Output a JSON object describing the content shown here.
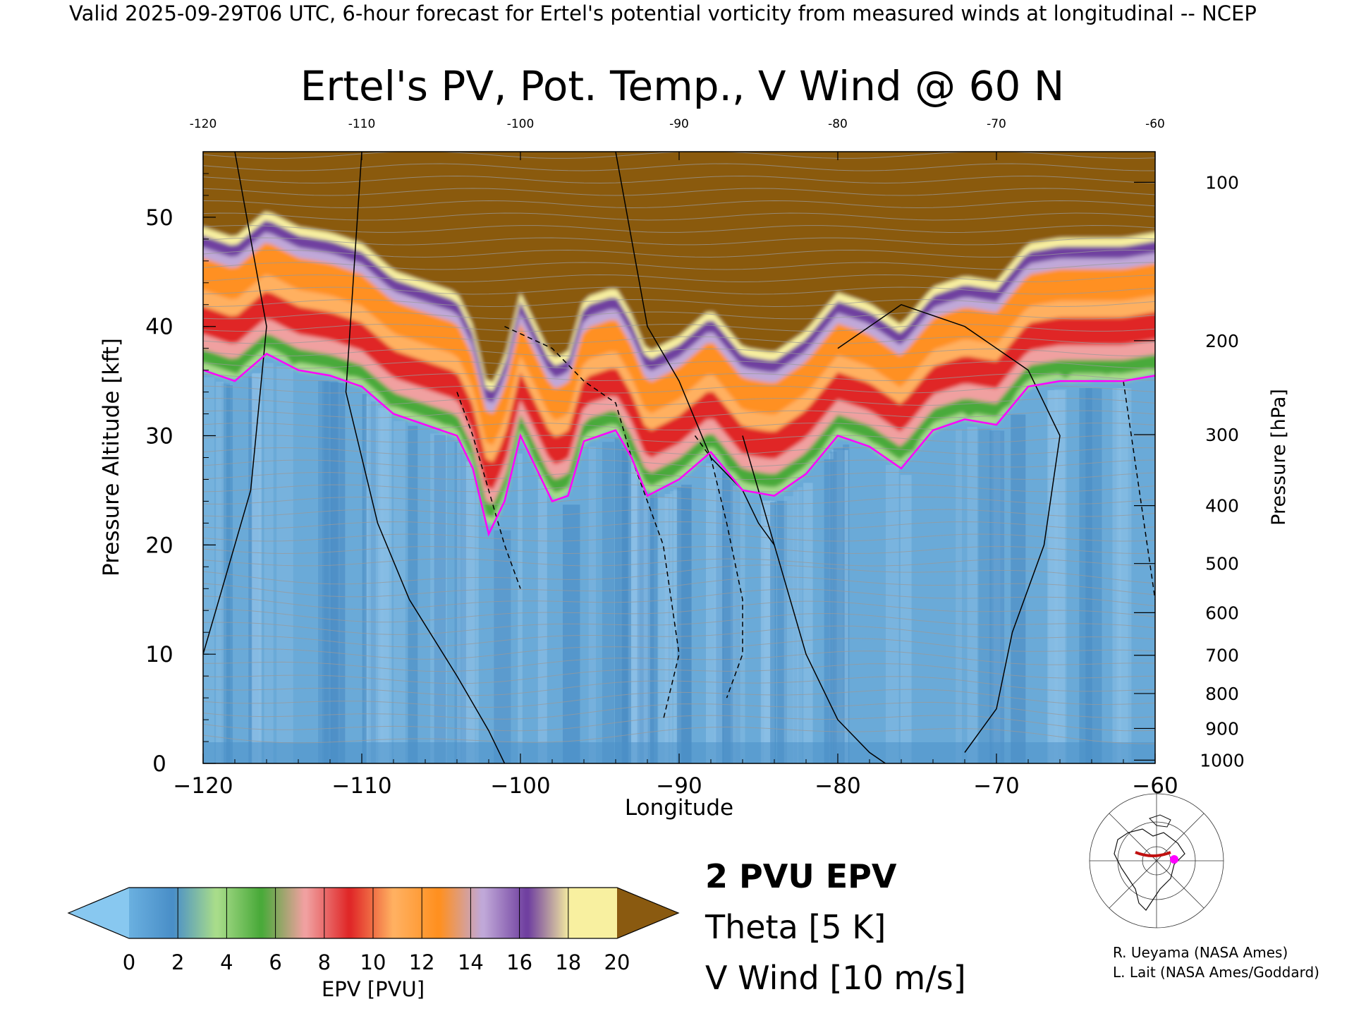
{
  "header": {
    "text": "Valid 2025-09-29T06 UTC, 6-hour forecast for Ertel's potential vorticity from measured winds at longitudinal -- NCEP"
  },
  "chart_data": {
    "type": "heatmap",
    "title": "Ertel's PV, Pot. Temp., V Wind @ 60 N",
    "xlabel": "Longitude",
    "ylabel": "Pressure Altitude [kft]",
    "y2label": "Pressure [hPa]",
    "xlim": [
      -120,
      -60
    ],
    "ylim": [
      0,
      56
    ],
    "x_ticks": [
      "-120",
      "-110",
      "-100",
      "-90",
      "-80",
      "-70",
      "-60"
    ],
    "y_ticks": [
      "0",
      "10",
      "20",
      "30",
      "40",
      "50"
    ],
    "pressure_ticks": [
      {
        "label": "100",
        "kft": 53.2
      },
      {
        "label": "200",
        "kft": 38.7
      },
      {
        "label": "300",
        "kft": 30.1
      },
      {
        "label": "400",
        "kft": 23.6
      },
      {
        "label": "500",
        "kft": 18.3
      },
      {
        "label": "600",
        "kft": 13.8
      },
      {
        "label": "700",
        "kft": 9.9
      },
      {
        "label": "800",
        "kft": 6.4
      },
      {
        "label": "900",
        "kft": 3.2
      },
      {
        "label": "1000",
        "kft": 0.3
      }
    ],
    "tropopause_2pvu_kft": [
      {
        "lon": -120,
        "kft": 36.0
      },
      {
        "lon": -118,
        "kft": 35.0
      },
      {
        "lon": -116,
        "kft": 37.5
      },
      {
        "lon": -114,
        "kft": 36.0
      },
      {
        "lon": -112,
        "kft": 35.5
      },
      {
        "lon": -110,
        "kft": 34.5
      },
      {
        "lon": -108,
        "kft": 32.0
      },
      {
        "lon": -106,
        "kft": 31.0
      },
      {
        "lon": -104,
        "kft": 30.0
      },
      {
        "lon": -103,
        "kft": 27.0
      },
      {
        "lon": -102,
        "kft": 21.0
      },
      {
        "lon": -101,
        "kft": 24.0
      },
      {
        "lon": -100,
        "kft": 30.0
      },
      {
        "lon": -99,
        "kft": 27.0
      },
      {
        "lon": -98,
        "kft": 24.0
      },
      {
        "lon": -97,
        "kft": 24.5
      },
      {
        "lon": -96,
        "kft": 29.5
      },
      {
        "lon": -94,
        "kft": 30.5
      },
      {
        "lon": -93,
        "kft": 28.0
      },
      {
        "lon": -92,
        "kft": 24.5
      },
      {
        "lon": -90,
        "kft": 26.0
      },
      {
        "lon": -88,
        "kft": 28.5
      },
      {
        "lon": -86,
        "kft": 25.0
      },
      {
        "lon": -84,
        "kft": 24.5
      },
      {
        "lon": -82,
        "kft": 26.5
      },
      {
        "lon": -80,
        "kft": 30.0
      },
      {
        "lon": -78,
        "kft": 29.0
      },
      {
        "lon": -76,
        "kft": 27.0
      },
      {
        "lon": -74,
        "kft": 30.5
      },
      {
        "lon": -72,
        "kft": 31.5
      },
      {
        "lon": -70,
        "kft": 31.0
      },
      {
        "lon": -68,
        "kft": 34.5
      },
      {
        "lon": -66,
        "kft": 35.0
      },
      {
        "lon": -62,
        "kft": 35.0
      },
      {
        "lon": -60,
        "kft": 35.5
      }
    ],
    "colorbar": {
      "label": "EPV [PVU]",
      "ticks": [
        "0",
        "2",
        "4",
        "6",
        "8",
        "10",
        "12",
        "14",
        "16",
        "18",
        "20"
      ],
      "colors": [
        "#6ab0e0",
        "#4a8fc8",
        "#a8dc8a",
        "#4aaa3a",
        "#f0a0a0",
        "#e02828",
        "#ffb060",
        "#ff9020",
        "#c0a8d8",
        "#7040a0",
        "#f8f0a0"
      ],
      "under_color": "#88c8f0",
      "over_color": "#8a5a10"
    }
  },
  "legend": {
    "pvu_label": "2 PVU EPV",
    "pvu_color": "#ff00ff",
    "theta_label": "Theta [5 K]",
    "theta_color": "#a0a0a0",
    "vwind_label": "V Wind [10 m/s]",
    "vwind_color": "#000000"
  },
  "credits": {
    "line1": "R. Ueyama (NASA Ames)",
    "line2": "L. Lait (NASA Ames/Goddard)"
  }
}
